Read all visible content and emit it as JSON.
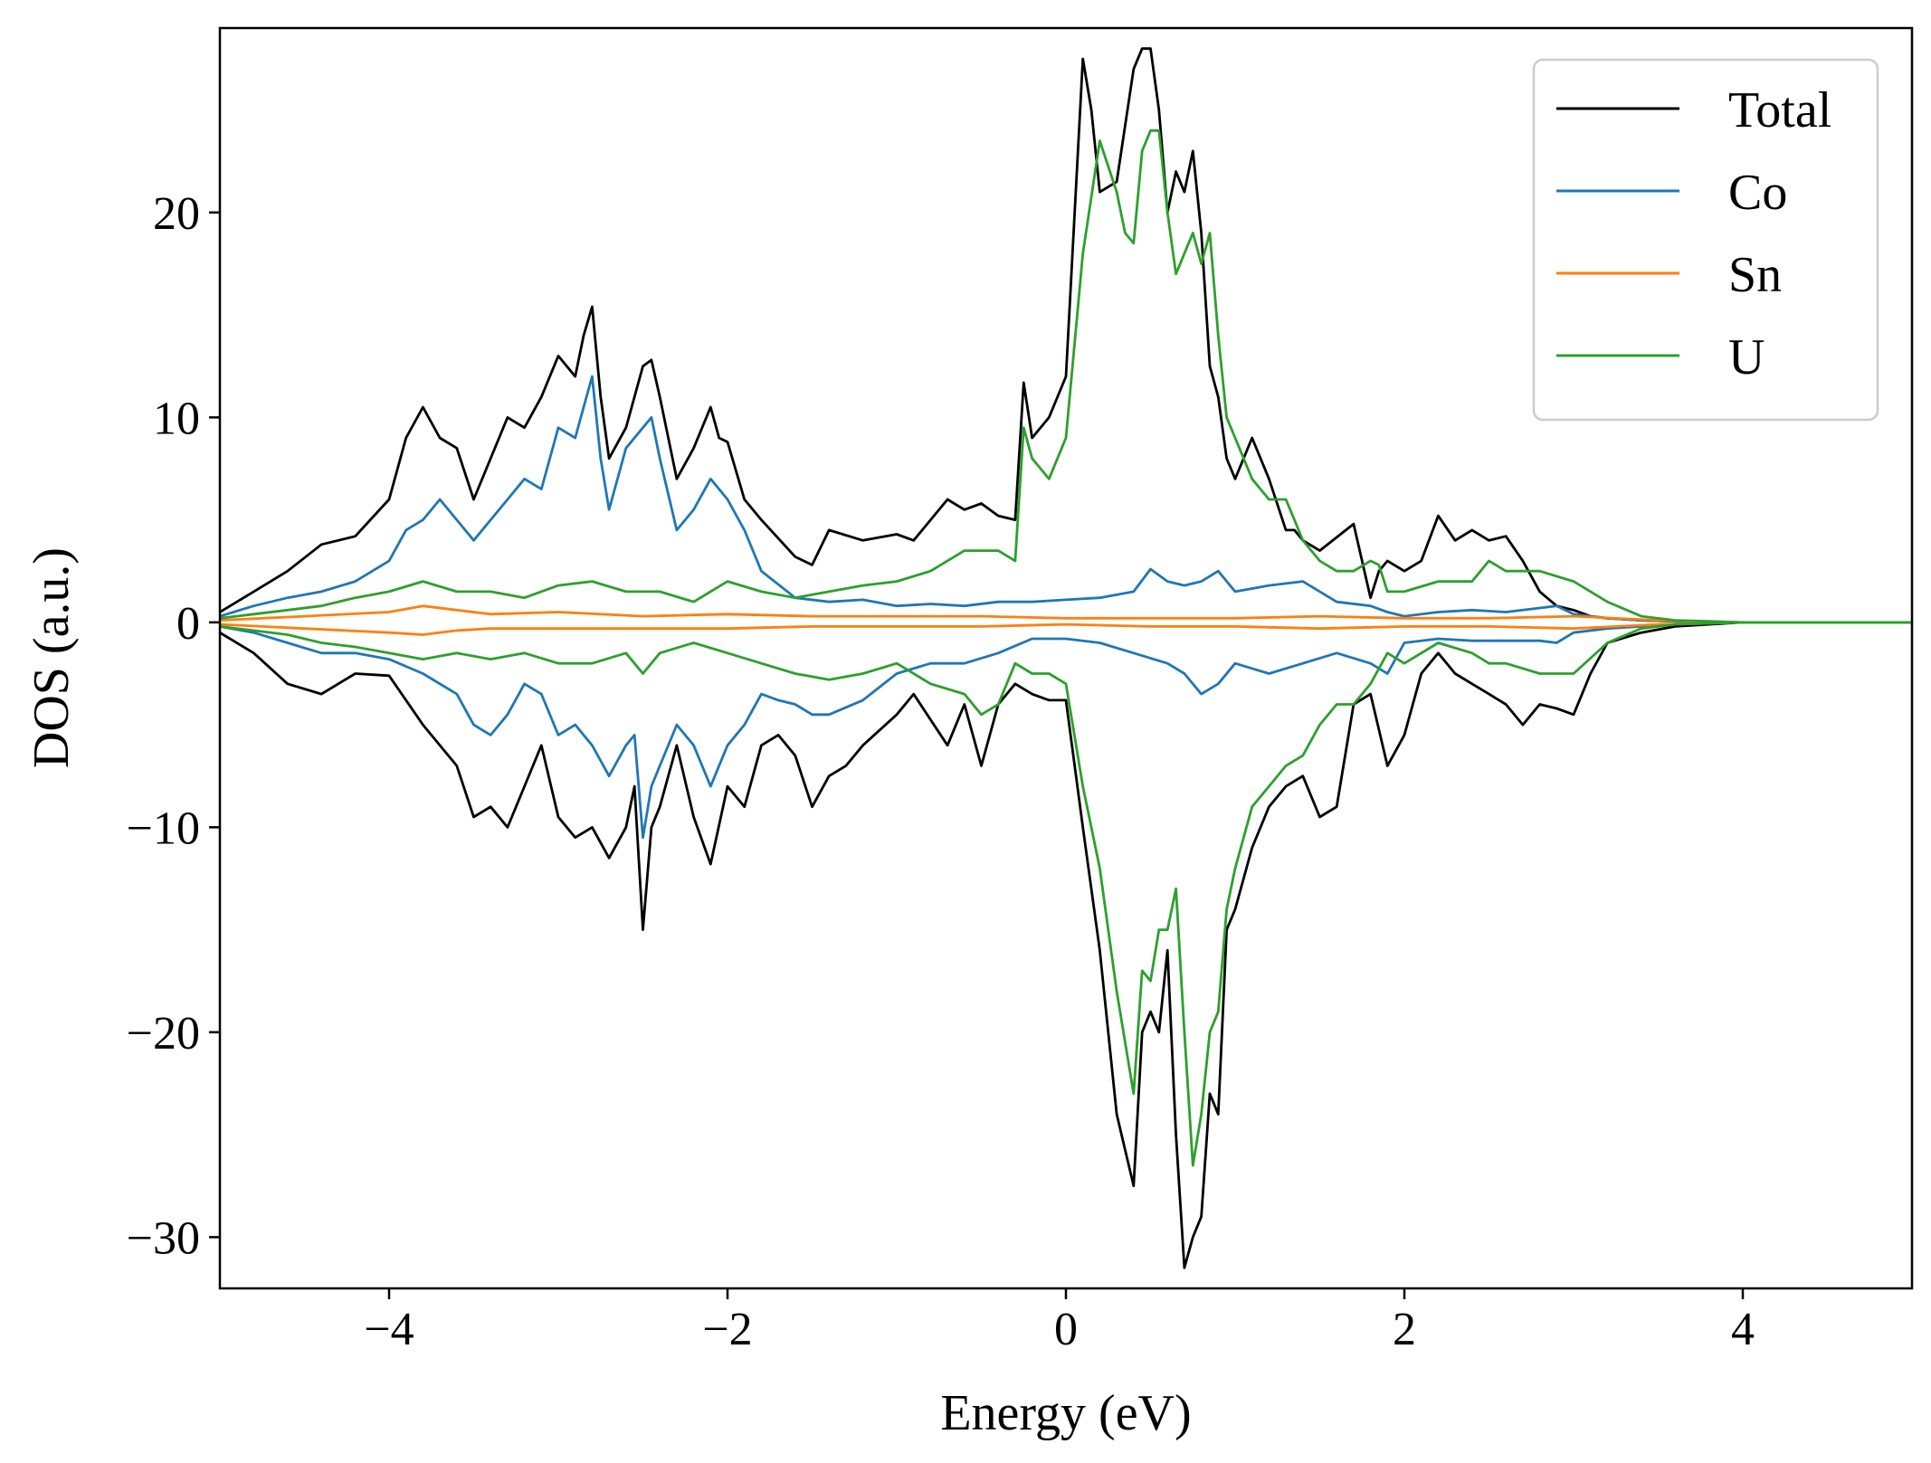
{
  "chart_data": {
    "type": "line",
    "title": "",
    "xlabel": "Energy (eV)",
    "ylabel": "DOS (a.u.)",
    "xlim": [
      -5,
      5
    ],
    "ylim": [
      -32.5,
      29
    ],
    "xticks": [
      -4,
      -2,
      0,
      2,
      4
    ],
    "xtick_labels": [
      "−4",
      "−2",
      "0",
      "2",
      "4"
    ],
    "yticks": [
      -30,
      -20,
      -10,
      0,
      10,
      20
    ],
    "ytick_labels": [
      "−30",
      "−20",
      "−10",
      "0",
      "10",
      "20"
    ],
    "grid": false,
    "legend_position": "top-right",
    "series": [
      {
        "name": "Total",
        "color": "#000000",
        "spin_up": {
          "x": [
            -5,
            -4.8,
            -4.6,
            -4.4,
            -4.2,
            -4.0,
            -3.9,
            -3.8,
            -3.7,
            -3.6,
            -3.5,
            -3.3,
            -3.2,
            -3.1,
            -3.0,
            -2.9,
            -2.85,
            -2.8,
            -2.75,
            -2.7,
            -2.6,
            -2.5,
            -2.45,
            -2.4,
            -2.3,
            -2.2,
            -2.1,
            -2.05,
            -2.0,
            -1.9,
            -1.8,
            -1.6,
            -1.5,
            -1.4,
            -1.2,
            -1.0,
            -0.9,
            -0.7,
            -0.6,
            -0.5,
            -0.4,
            -0.3,
            -0.25,
            -0.2,
            -0.1,
            0.0,
            0.1,
            0.15,
            0.2,
            0.3,
            0.4,
            0.45,
            0.5,
            0.55,
            0.6,
            0.65,
            0.7,
            0.75,
            0.8,
            0.85,
            0.9,
            0.95,
            1.0,
            1.1,
            1.2,
            1.3,
            1.35,
            1.4,
            1.5,
            1.7,
            1.8,
            1.85,
            1.9,
            2.0,
            2.1,
            2.2,
            2.3,
            2.4,
            2.5,
            2.6,
            2.7,
            2.8,
            2.9,
            3.0,
            3.1,
            3.2,
            3.4,
            3.6,
            3.8,
            4.0,
            4.5,
            5.0
          ],
          "y": [
            0.5,
            1.5,
            2.5,
            3.8,
            4.2,
            6.0,
            9.0,
            10.5,
            9.0,
            8.5,
            6.0,
            10.0,
            9.5,
            11.0,
            13.0,
            12.0,
            14.0,
            15.4,
            11.0,
            8.0,
            9.5,
            12.5,
            12.8,
            11.0,
            7.0,
            8.5,
            10.5,
            9.0,
            8.8,
            6.0,
            5.0,
            3.2,
            2.8,
            4.5,
            4.0,
            4.3,
            4.0,
            6.0,
            5.5,
            5.8,
            5.2,
            5.0,
            11.7,
            9.0,
            10.0,
            12.0,
            27.5,
            25.0,
            21.0,
            21.5,
            27.0,
            28.0,
            28.0,
            25.0,
            20.0,
            22.0,
            21.0,
            23.0,
            19.0,
            12.5,
            11.0,
            8.0,
            7.0,
            9.0,
            7.0,
            4.5,
            4.5,
            4.0,
            3.5,
            4.8,
            1.2,
            2.5,
            3.0,
            2.5,
            3.0,
            5.2,
            4.0,
            4.5,
            4.0,
            4.2,
            3.0,
            1.5,
            0.8,
            0.6,
            0.3,
            0.2,
            0.1,
            0.05,
            0.0,
            0.0,
            0.0,
            0.0
          ]
        },
        "spin_down": {
          "x": [
            -5,
            -4.8,
            -4.6,
            -4.4,
            -4.2,
            -4.0,
            -3.8,
            -3.6,
            -3.5,
            -3.4,
            -3.3,
            -3.2,
            -3.1,
            -3.0,
            -2.9,
            -2.8,
            -2.7,
            -2.6,
            -2.55,
            -2.5,
            -2.45,
            -2.4,
            -2.3,
            -2.2,
            -2.1,
            -2.0,
            -1.9,
            -1.8,
            -1.7,
            -1.6,
            -1.5,
            -1.4,
            -1.3,
            -1.2,
            -1.0,
            -0.9,
            -0.7,
            -0.6,
            -0.5,
            -0.4,
            -0.3,
            -0.2,
            -0.1,
            0.0,
            0.1,
            0.2,
            0.3,
            0.4,
            0.45,
            0.5,
            0.55,
            0.6,
            0.65,
            0.7,
            0.75,
            0.8,
            0.85,
            0.9,
            0.95,
            1.0,
            1.1,
            1.2,
            1.3,
            1.4,
            1.5,
            1.6,
            1.7,
            1.8,
            1.9,
            2.0,
            2.1,
            2.2,
            2.3,
            2.4,
            2.5,
            2.6,
            2.7,
            2.8,
            2.9,
            3.0,
            3.1,
            3.2,
            3.4,
            3.6,
            3.8,
            4.0,
            4.5,
            5.0
          ],
          "y": [
            -0.5,
            -1.5,
            -3.0,
            -3.5,
            -2.5,
            -2.6,
            -5.0,
            -7.0,
            -9.5,
            -9.0,
            -10.0,
            -8.0,
            -6.0,
            -9.5,
            -10.5,
            -10.0,
            -11.5,
            -10.0,
            -8.0,
            -15.0,
            -10.0,
            -9.0,
            -6.0,
            -9.5,
            -11.8,
            -8.0,
            -9.0,
            -6.0,
            -5.5,
            -6.5,
            -9.0,
            -7.5,
            -7.0,
            -6.0,
            -4.5,
            -3.5,
            -6.0,
            -4.0,
            -7.0,
            -4.0,
            -3.0,
            -3.5,
            -3.8,
            -3.8,
            -10.0,
            -16.0,
            -24.0,
            -27.5,
            -20.0,
            -19.0,
            -20.0,
            -16.0,
            -25.0,
            -31.5,
            -30.0,
            -29.0,
            -23.0,
            -24.0,
            -15.0,
            -14.0,
            -11.0,
            -9.0,
            -8.0,
            -7.5,
            -9.5,
            -9.0,
            -4.0,
            -3.5,
            -7.0,
            -5.5,
            -2.5,
            -1.5,
            -2.5,
            -3.0,
            -3.5,
            -4.0,
            -5.0,
            -4.0,
            -4.2,
            -4.5,
            -2.5,
            -1.0,
            -0.5,
            -0.2,
            -0.1,
            0.0,
            0.0,
            0.0
          ]
        }
      },
      {
        "name": "Co",
        "color": "#1f77b4",
        "spin_up": {
          "x": [
            -5,
            -4.8,
            -4.6,
            -4.4,
            -4.2,
            -4.0,
            -3.9,
            -3.8,
            -3.7,
            -3.6,
            -3.5,
            -3.4,
            -3.3,
            -3.2,
            -3.1,
            -3.0,
            -2.9,
            -2.85,
            -2.8,
            -2.75,
            -2.7,
            -2.6,
            -2.5,
            -2.45,
            -2.4,
            -2.3,
            -2.2,
            -2.1,
            -2.05,
            -2.0,
            -1.9,
            -1.8,
            -1.6,
            -1.4,
            -1.2,
            -1.0,
            -0.8,
            -0.6,
            -0.4,
            -0.2,
            0.0,
            0.2,
            0.4,
            0.5,
            0.6,
            0.7,
            0.8,
            0.9,
            1.0,
            1.2,
            1.4,
            1.6,
            1.8,
            1.9,
            2.0,
            2.2,
            2.4,
            2.6,
            2.8,
            2.9,
            3.0,
            3.2,
            3.4,
            3.6,
            3.8,
            4.0,
            4.5,
            5.0
          ],
          "y": [
            0.3,
            0.8,
            1.2,
            1.5,
            2.0,
            3.0,
            4.5,
            5.0,
            6.0,
            5.0,
            4.0,
            5.0,
            6.0,
            7.0,
            6.5,
            9.5,
            9.0,
            10.5,
            12.0,
            8.0,
            5.5,
            8.5,
            9.5,
            10.0,
            8.0,
            4.5,
            5.5,
            7.0,
            6.5,
            6.0,
            4.5,
            2.5,
            1.2,
            1.0,
            1.1,
            0.8,
            0.9,
            0.8,
            1.0,
            1.0,
            1.1,
            1.2,
            1.5,
            2.6,
            2.0,
            1.8,
            2.0,
            2.5,
            1.5,
            1.8,
            2.0,
            1.0,
            0.8,
            0.5,
            0.3,
            0.5,
            0.6,
            0.5,
            0.7,
            0.8,
            0.4,
            0.2,
            0.1,
            0.05,
            0.0,
            0.0,
            0.0,
            0.0
          ]
        },
        "spin_down": {
          "x": [
            -5,
            -4.8,
            -4.6,
            -4.4,
            -4.2,
            -4.0,
            -3.8,
            -3.6,
            -3.5,
            -3.4,
            -3.3,
            -3.2,
            -3.1,
            -3.0,
            -2.9,
            -2.8,
            -2.7,
            -2.6,
            -2.55,
            -2.5,
            -2.45,
            -2.4,
            -2.3,
            -2.2,
            -2.1,
            -2.0,
            -1.9,
            -1.8,
            -1.7,
            -1.6,
            -1.5,
            -1.4,
            -1.2,
            -1.0,
            -0.8,
            -0.6,
            -0.4,
            -0.2,
            0.0,
            0.2,
            0.4,
            0.6,
            0.7,
            0.8,
            0.9,
            1.0,
            1.2,
            1.4,
            1.6,
            1.8,
            1.9,
            2.0,
            2.2,
            2.4,
            2.6,
            2.8,
            2.9,
            3.0,
            3.2,
            3.4,
            3.6,
            3.8,
            4.0,
            4.5,
            5.0
          ],
          "y": [
            -0.2,
            -0.5,
            -1.0,
            -1.5,
            -1.5,
            -1.8,
            -2.5,
            -3.5,
            -5.0,
            -5.5,
            -4.5,
            -3.0,
            -3.5,
            -5.5,
            -5.0,
            -6.0,
            -7.5,
            -6.0,
            -5.5,
            -10.5,
            -8.0,
            -7.0,
            -5.0,
            -6.0,
            -8.0,
            -6.0,
            -5.0,
            -3.5,
            -3.8,
            -4.0,
            -4.5,
            -4.5,
            -3.8,
            -2.5,
            -2.0,
            -2.0,
            -1.5,
            -0.8,
            -0.8,
            -1.0,
            -1.5,
            -2.0,
            -2.5,
            -3.5,
            -3.0,
            -2.0,
            -2.5,
            -2.0,
            -1.5,
            -2.0,
            -2.5,
            -1.0,
            -0.8,
            -0.9,
            -0.9,
            -0.9,
            -1.0,
            -0.5,
            -0.3,
            -0.2,
            -0.1,
            -0.05,
            0.0,
            0.0,
            0.0
          ]
        }
      },
      {
        "name": "Sn",
        "color": "#ff7f0e",
        "spin_up": {
          "x": [
            -5,
            -4.5,
            -4.0,
            -3.8,
            -3.6,
            -3.4,
            -3.0,
            -2.5,
            -2.0,
            -1.5,
            -1.0,
            -0.5,
            0.0,
            0.5,
            1.0,
            1.5,
            2.0,
            2.5,
            3.0,
            3.5,
            4.0,
            5.0
          ],
          "y": [
            0.1,
            0.3,
            0.5,
            0.8,
            0.6,
            0.4,
            0.5,
            0.3,
            0.4,
            0.3,
            0.3,
            0.3,
            0.2,
            0.2,
            0.2,
            0.3,
            0.2,
            0.2,
            0.3,
            0.1,
            0.0,
            0.0
          ]
        },
        "spin_down": {
          "x": [
            -5,
            -4.5,
            -4.0,
            -3.8,
            -3.6,
            -3.4,
            -3.0,
            -2.5,
            -2.0,
            -1.5,
            -1.0,
            -0.5,
            0.0,
            0.5,
            1.0,
            1.5,
            2.0,
            2.5,
            3.0,
            3.5,
            4.0,
            5.0
          ],
          "y": [
            -0.1,
            -0.3,
            -0.5,
            -0.6,
            -0.4,
            -0.3,
            -0.3,
            -0.3,
            -0.3,
            -0.2,
            -0.2,
            -0.2,
            -0.1,
            -0.2,
            -0.2,
            -0.3,
            -0.2,
            -0.2,
            -0.3,
            -0.1,
            0.0,
            0.0
          ]
        }
      },
      {
        "name": "U",
        "color": "#2ca02c",
        "spin_up": {
          "x": [
            -5,
            -4.8,
            -4.6,
            -4.4,
            -4.2,
            -4.0,
            -3.8,
            -3.6,
            -3.4,
            -3.2,
            -3.0,
            -2.8,
            -2.6,
            -2.4,
            -2.2,
            -2.0,
            -1.8,
            -1.6,
            -1.4,
            -1.2,
            -1.0,
            -0.8,
            -0.6,
            -0.4,
            -0.3,
            -0.25,
            -0.2,
            -0.1,
            0.0,
            0.1,
            0.2,
            0.3,
            0.35,
            0.4,
            0.45,
            0.5,
            0.55,
            0.6,
            0.65,
            0.7,
            0.75,
            0.8,
            0.85,
            0.9,
            0.95,
            1.0,
            1.1,
            1.2,
            1.3,
            1.35,
            1.4,
            1.5,
            1.6,
            1.7,
            1.8,
            1.85,
            1.9,
            2.0,
            2.2,
            2.4,
            2.5,
            2.6,
            2.8,
            3.0,
            3.2,
            3.4,
            3.6,
            3.8,
            4.0,
            4.5,
            5.0
          ],
          "y": [
            0.2,
            0.4,
            0.6,
            0.8,
            1.2,
            1.5,
            2.0,
            1.5,
            1.5,
            1.2,
            1.8,
            2.0,
            1.5,
            1.5,
            1.0,
            2.0,
            1.5,
            1.2,
            1.5,
            1.8,
            2.0,
            2.5,
            3.5,
            3.5,
            3.0,
            9.5,
            8.0,
            7.0,
            9.0,
            18.0,
            23.5,
            21.0,
            19.0,
            18.5,
            23.0,
            24.0,
            24.0,
            20.0,
            17.0,
            18.0,
            19.0,
            17.5,
            19.0,
            14.0,
            10.0,
            9.0,
            7.0,
            6.0,
            6.0,
            5.0,
            4.0,
            3.0,
            2.5,
            2.5,
            3.0,
            2.8,
            1.5,
            1.5,
            2.0,
            2.0,
            3.0,
            2.5,
            2.5,
            2.0,
            1.0,
            0.3,
            0.1,
            0.05,
            0.0,
            0.0,
            0.0
          ]
        },
        "spin_down": {
          "x": [
            -5,
            -4.8,
            -4.6,
            -4.4,
            -4.2,
            -4.0,
            -3.8,
            -3.6,
            -3.4,
            -3.2,
            -3.0,
            -2.8,
            -2.6,
            -2.5,
            -2.4,
            -2.2,
            -2.0,
            -1.8,
            -1.6,
            -1.4,
            -1.2,
            -1.0,
            -0.8,
            -0.6,
            -0.5,
            -0.4,
            -0.3,
            -0.2,
            -0.1,
            0.0,
            0.1,
            0.2,
            0.3,
            0.4,
            0.45,
            0.5,
            0.55,
            0.6,
            0.65,
            0.7,
            0.75,
            0.8,
            0.85,
            0.9,
            0.95,
            1.0,
            1.1,
            1.2,
            1.3,
            1.4,
            1.5,
            1.6,
            1.7,
            1.8,
            1.9,
            2.0,
            2.2,
            2.4,
            2.5,
            2.6,
            2.8,
            3.0,
            3.2,
            3.4,
            3.6,
            3.8,
            4.0,
            4.5,
            5.0
          ],
          "y": [
            -0.2,
            -0.4,
            -0.6,
            -1.0,
            -1.2,
            -1.5,
            -1.8,
            -1.5,
            -1.8,
            -1.5,
            -2.0,
            -2.0,
            -1.5,
            -2.5,
            -1.5,
            -1.0,
            -1.5,
            -2.0,
            -2.5,
            -2.8,
            -2.5,
            -2.0,
            -3.0,
            -3.5,
            -4.5,
            -4.0,
            -2.0,
            -2.5,
            -2.5,
            -3.0,
            -8.0,
            -12.0,
            -18.0,
            -23.0,
            -17.0,
            -17.5,
            -15.0,
            -15.0,
            -13.0,
            -20.0,
            -26.5,
            -24.0,
            -20.0,
            -19.0,
            -14.0,
            -12.0,
            -9.0,
            -8.0,
            -7.0,
            -6.5,
            -5.0,
            -4.0,
            -4.0,
            -3.0,
            -1.5,
            -2.0,
            -1.0,
            -1.5,
            -2.0,
            -2.0,
            -2.5,
            -2.5,
            -1.0,
            -0.3,
            -0.1,
            -0.05,
            0.0,
            0.0,
            0.0
          ]
        }
      }
    ]
  }
}
